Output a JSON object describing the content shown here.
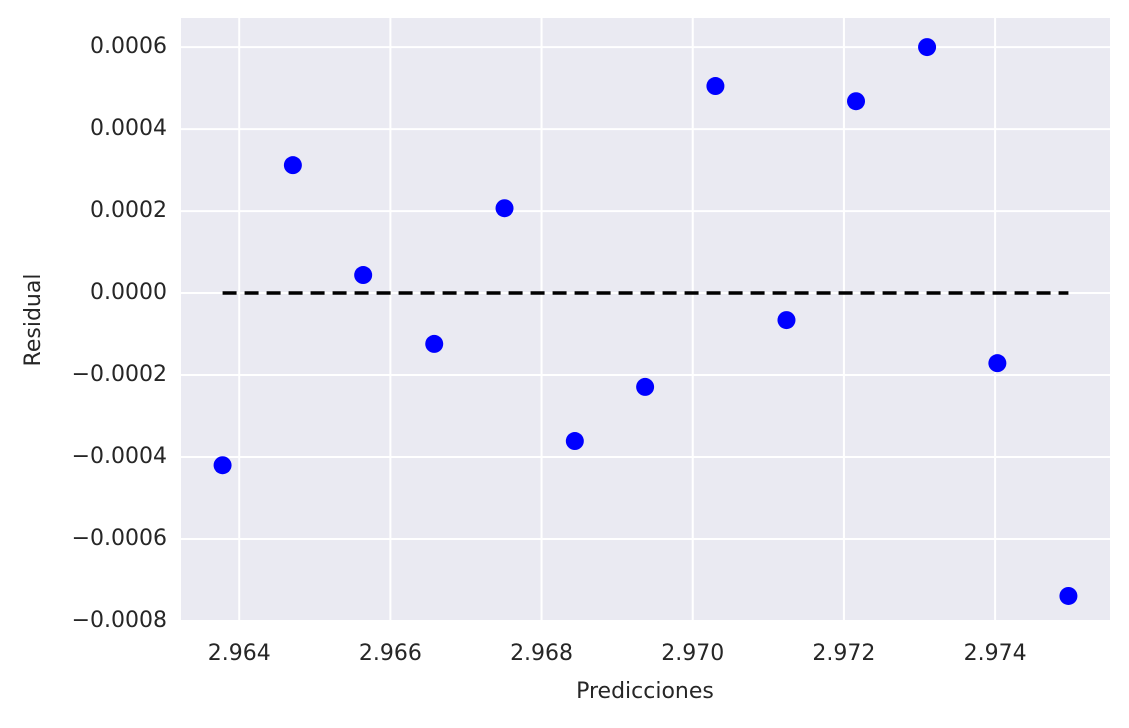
{
  "chart_data": {
    "type": "scatter",
    "x_label": "Predicciones",
    "y_label": "Residual",
    "x": [
      2.96378,
      2.96471,
      2.96564,
      2.96658,
      2.96751,
      2.96844,
      2.96937,
      2.9703,
      2.97124,
      2.97216,
      2.9731,
      2.97403,
      2.97497
    ],
    "values": [
      -0.00042,
      0.000312,
      4.4e-05,
      -0.000124,
      0.000207,
      -0.000361,
      -0.000229,
      0.000505,
      -6.6e-05,
      0.000468,
      0.0006,
      -0.000171,
      -0.000739
    ],
    "color": "#0000ff",
    "hline": {
      "y": 0,
      "xmin": 2.96378,
      "xmax": 2.97497,
      "color": "#000000"
    },
    "xlim": [
      2.96323,
      2.97552
    ],
    "ylim": [
      -0.0008,
      0.000671
    ],
    "xticks": [
      2.964,
      2.966,
      2.968,
      {
        "value": 2.97,
        "label": "2.970"
      },
      2.972,
      2.974
    ],
    "yticks": [
      {
        "value": -0.0008,
        "label": "−0.0008"
      },
      {
        "value": -0.0006,
        "label": "−0.0006"
      },
      {
        "value": -0.0004,
        "label": "−0.0004"
      },
      {
        "value": -0.0002,
        "label": "−0.0002"
      },
      {
        "value": 0,
        "label": "0.0000"
      },
      {
        "value": 0.0002,
        "label": "0.0002"
      },
      {
        "value": 0.0004,
        "label": "0.0004"
      },
      {
        "value": 0.0006,
        "label": "0.0006"
      }
    ],
    "grid": true
  }
}
